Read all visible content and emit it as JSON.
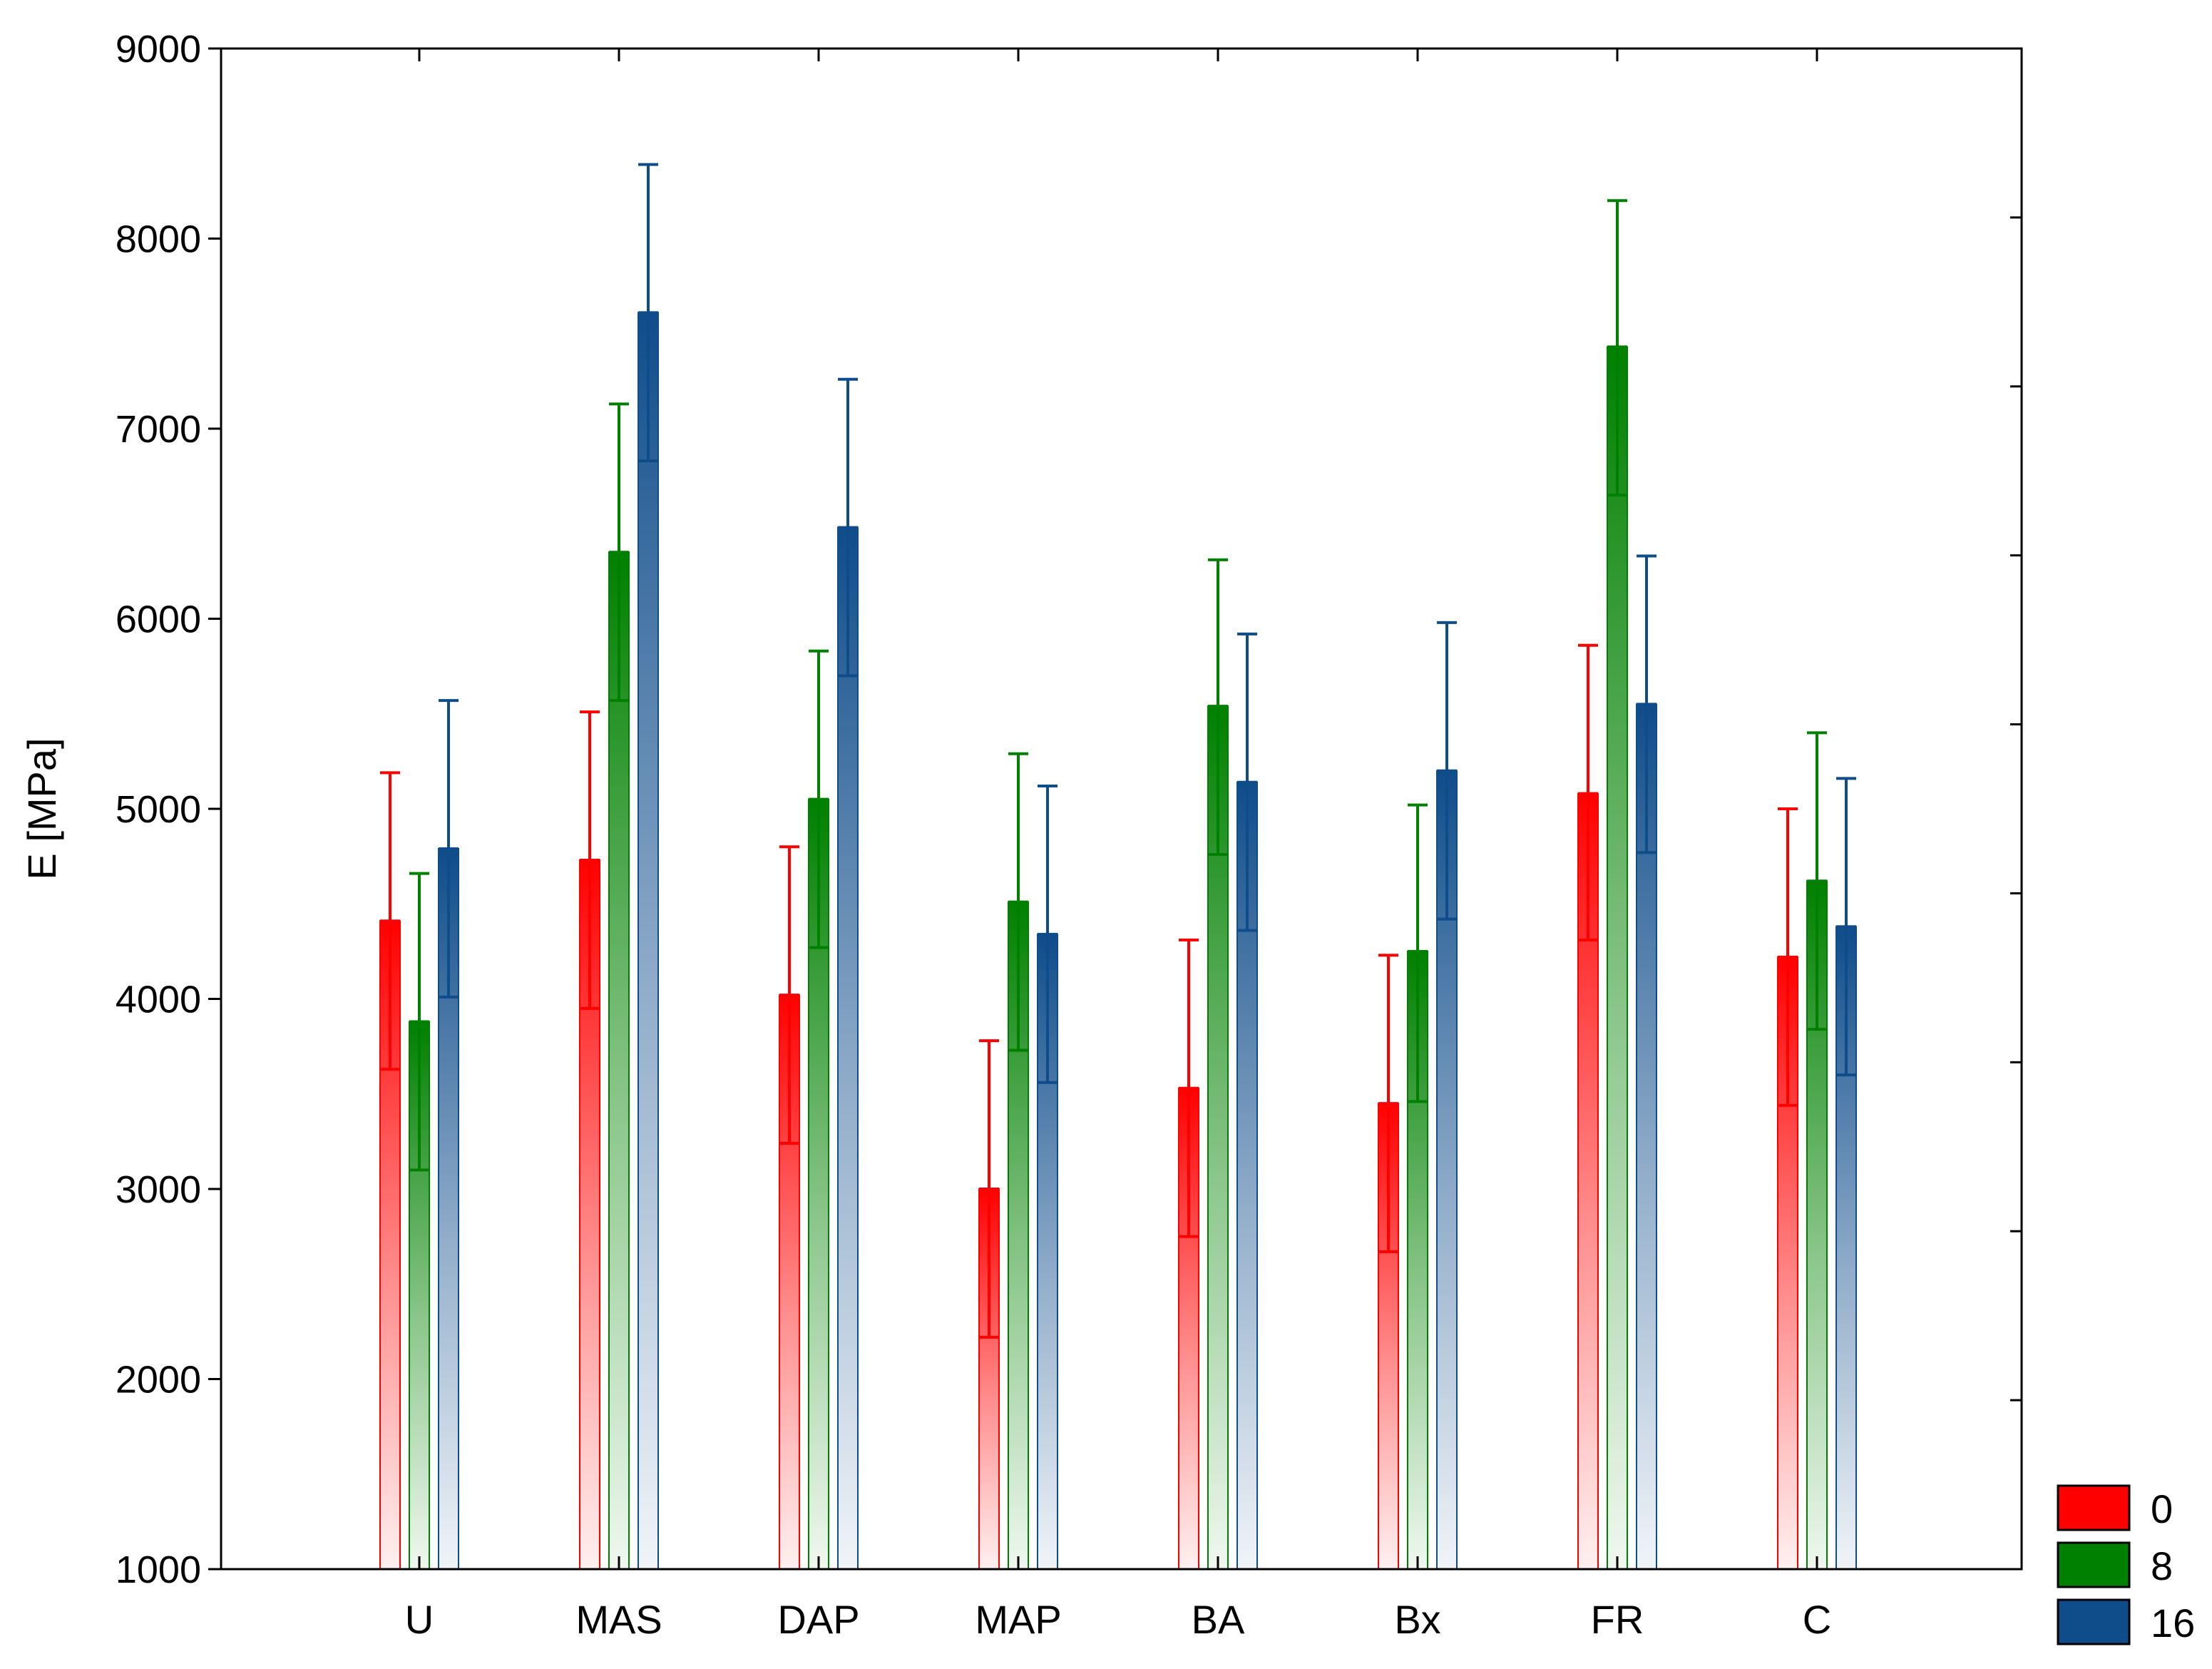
{
  "chart_data": {
    "type": "bar",
    "title": "",
    "xlabel": "",
    "ylabel": "E [MPa]",
    "ylim": [
      1000,
      9000
    ],
    "yticks": [
      "1000",
      "2000",
      "3000",
      "4000",
      "5000",
      "6000",
      "7000",
      "8000",
      "9000"
    ],
    "grid": false,
    "legend_position": "bottom-right",
    "error_bars": true,
    "categories": [
      "U",
      "MAS",
      "DAP",
      "MAP",
      "BA",
      "Bx",
      "FR",
      "C"
    ],
    "series": [
      {
        "name": "0",
        "color": "#ff0000",
        "values": [
          4410,
          4730,
          4020,
          3000,
          3530,
          3450,
          5080,
          4220
        ],
        "err_low": [
          3630,
          3950,
          3240,
          2220,
          2750,
          2670,
          4310,
          3440
        ],
        "err_high": [
          5190,
          5510,
          4800,
          3780,
          4310,
          4230,
          5860,
          5000
        ]
      },
      {
        "name": "8",
        "color": "#008000",
        "values": [
          3880,
          6350,
          5050,
          4510,
          5540,
          4250,
          7430,
          4620
        ],
        "err_low": [
          3100,
          5570,
          4270,
          3730,
          4760,
          3460,
          6650,
          3840
        ],
        "err_high": [
          4660,
          7130,
          5830,
          5290,
          6310,
          5020,
          8200,
          5400
        ]
      },
      {
        "name": "16",
        "color": "#0f4c8a",
        "values": [
          4790,
          7610,
          6480,
          4340,
          5140,
          5200,
          5550,
          4380
        ],
        "err_low": [
          4010,
          6830,
          5700,
          3560,
          4360,
          4420,
          4770,
          3600
        ],
        "err_high": [
          5570,
          8390,
          7260,
          5120,
          5920,
          5980,
          6330,
          5160
        ]
      }
    ]
  }
}
